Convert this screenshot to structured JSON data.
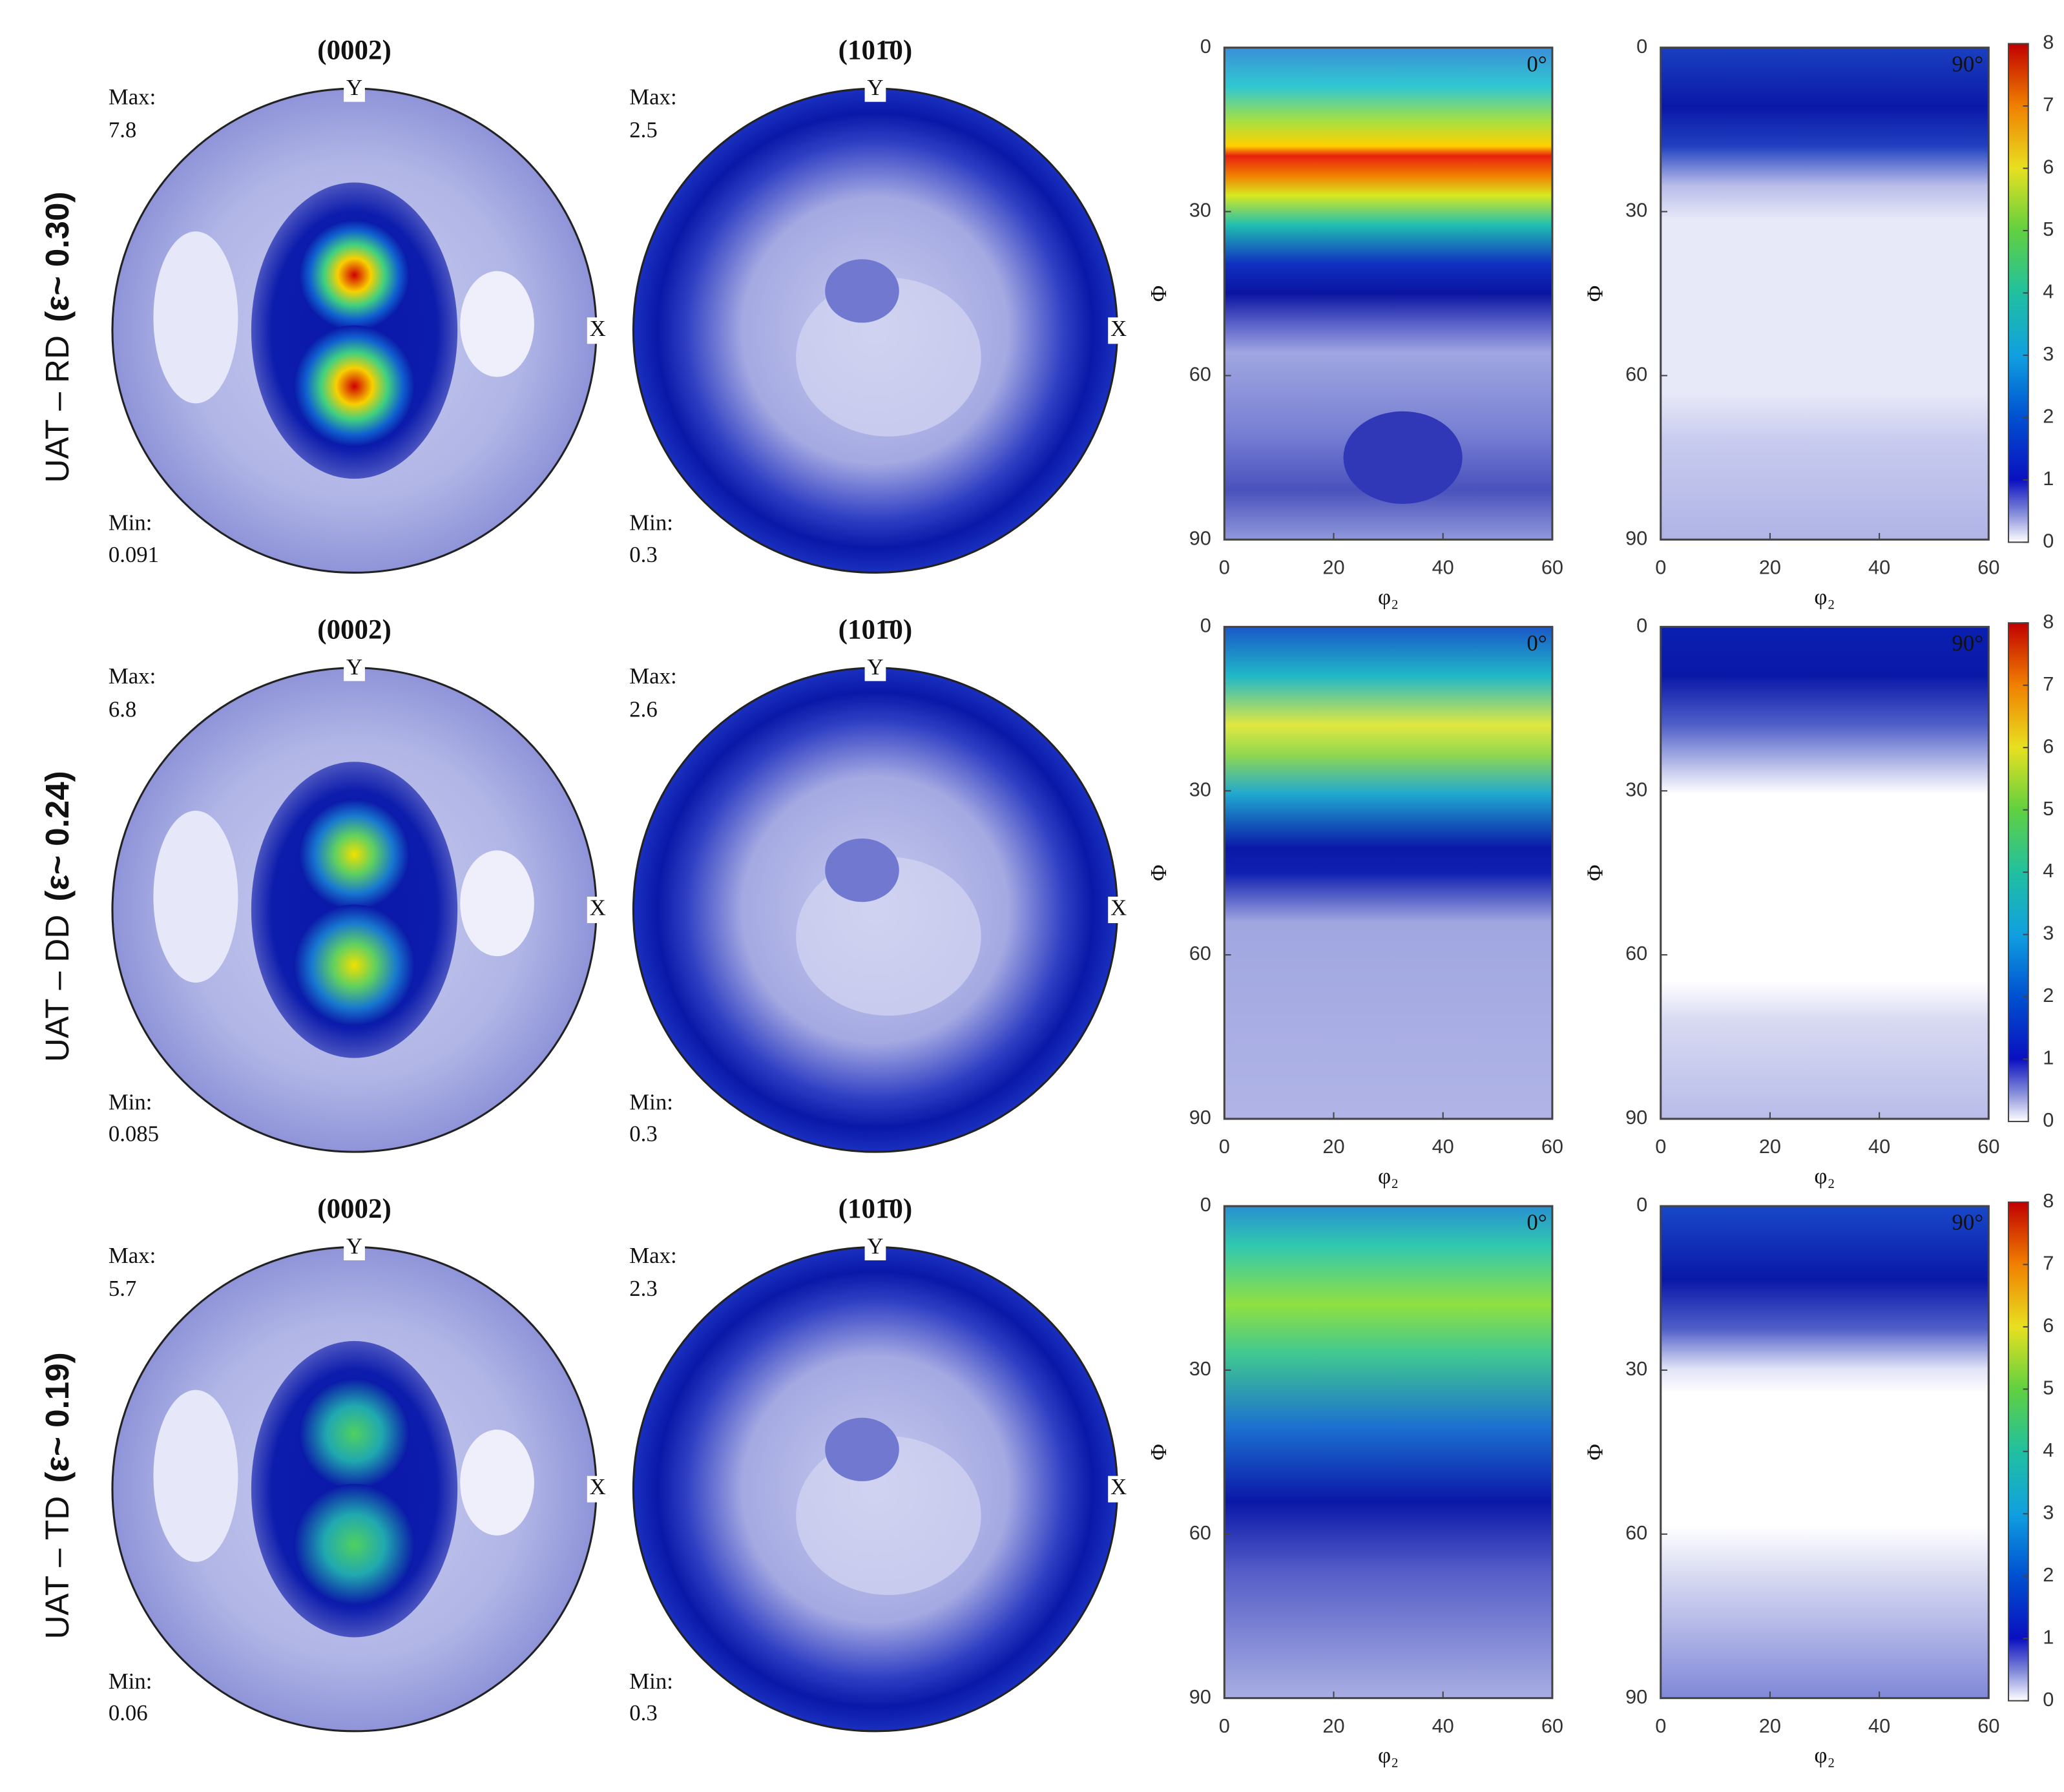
{
  "rows": [
    {
      "label": "UAT – RD",
      "strain": "(ε~ 0.30)",
      "pole_figures": [
        {
          "title": "(0002)",
          "max_label": "Max:",
          "max": 7.8,
          "min_label": "Min:",
          "min": 0.091,
          "y_axis": "Y",
          "x_axis": "X"
        },
        {
          "title": "(101̄0)",
          "max_label": "Max:",
          "max": 2.5,
          "min_label": "Min:",
          "min": 0.3,
          "y_axis": "Y",
          "x_axis": "X"
        }
      ],
      "odf_sections": [
        {
          "angle": "0°"
        },
        {
          "angle": "90°"
        }
      ]
    },
    {
      "label": "UAT – DD",
      "strain": "(ε~ 0.24)",
      "pole_figures": [
        {
          "title": "(0002)",
          "max_label": "Max:",
          "max": 6.8,
          "min_label": "Min:",
          "min": 0.085,
          "y_axis": "Y",
          "x_axis": "X"
        },
        {
          "title": "(101̄0)",
          "max_label": "Max:",
          "max": 2.6,
          "min_label": "Min:",
          "min": 0.3,
          "y_axis": "Y",
          "x_axis": "X"
        }
      ],
      "odf_sections": [
        {
          "angle": "0°"
        },
        {
          "angle": "90°"
        }
      ]
    },
    {
      "label": "UAT – TD",
      "strain": "(ε~ 0.19)",
      "pole_figures": [
        {
          "title": "(0002)",
          "max_label": "Max:",
          "max": 5.7,
          "min_label": "Min:",
          "min": 0.06,
          "y_axis": "Y",
          "x_axis": "X"
        },
        {
          "title": "(101̄0)",
          "max_label": "Max:",
          "max": 2.3,
          "min_label": "Min:",
          "min": 0.3,
          "y_axis": "Y",
          "x_axis": "X"
        }
      ],
      "odf_sections": [
        {
          "angle": "0°"
        },
        {
          "angle": "90°"
        }
      ]
    }
  ],
  "odf_axes": {
    "phi_label": "Φ",
    "phi_ticks": [
      0,
      30,
      60,
      90
    ],
    "phi2_label": "φ₂",
    "phi2_ticks": [
      0,
      20,
      40,
      60
    ]
  },
  "colorbar": {
    "ticks": [
      0,
      1,
      2,
      3,
      4,
      5,
      6,
      7,
      8
    ]
  }
}
